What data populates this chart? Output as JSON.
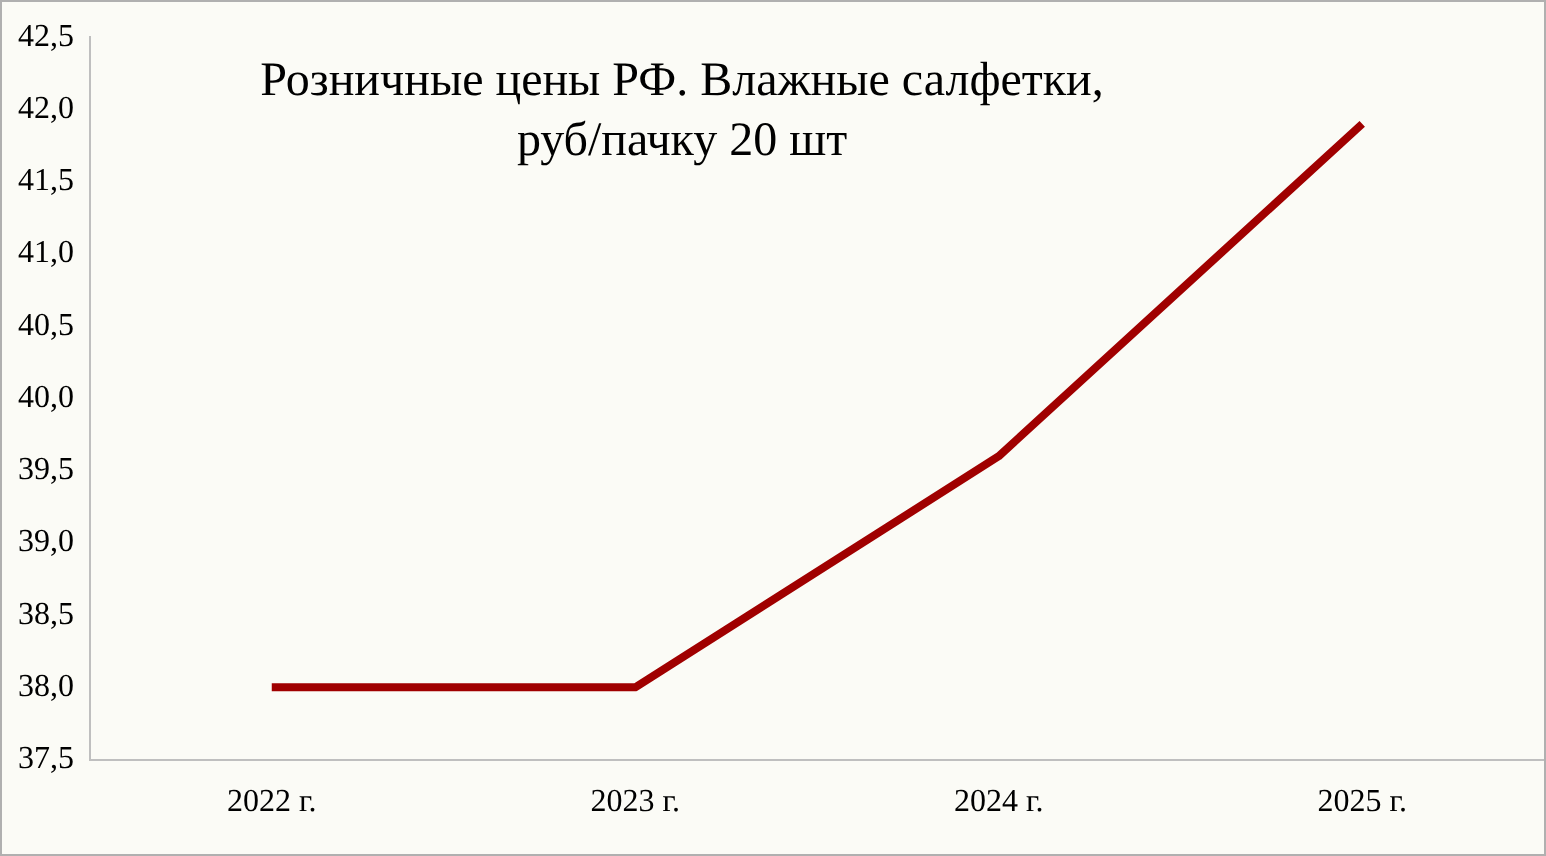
{
  "chart_data": {
    "type": "line",
    "title": [
      "Розничные цены РФ. Влажные салфетки,",
      "руб/пачку 20 шт"
    ],
    "categories": [
      "2022 г.",
      "2023 г.",
      "2024 г.",
      "2025 г."
    ],
    "series": [
      {
        "color": "#a00000",
        "values": [
          38.0,
          38.0,
          39.6,
          41.9
        ]
      }
    ],
    "ylim": [
      37.5,
      42.5
    ],
    "yticks": [
      {
        "value": 37.5,
        "label": "37,5"
      },
      {
        "value": 38,
        "label": "38,0"
      },
      {
        "value": 38.5,
        "label": "38,5"
      },
      {
        "value": 39,
        "label": "39,0"
      },
      {
        "value": 39.5,
        "label": "39,5"
      },
      {
        "value": 40,
        "label": "40,0"
      },
      {
        "value": 40.5,
        "label": "40,5"
      },
      {
        "value": 41,
        "label": "41,0"
      },
      {
        "value": 41.5,
        "label": "41,5"
      },
      {
        "value": 42,
        "label": "42,0"
      },
      {
        "value": 42.5,
        "label": "42,5"
      }
    ],
    "grid": false,
    "legend": false,
    "marker": "none",
    "line_style": "solid"
  }
}
